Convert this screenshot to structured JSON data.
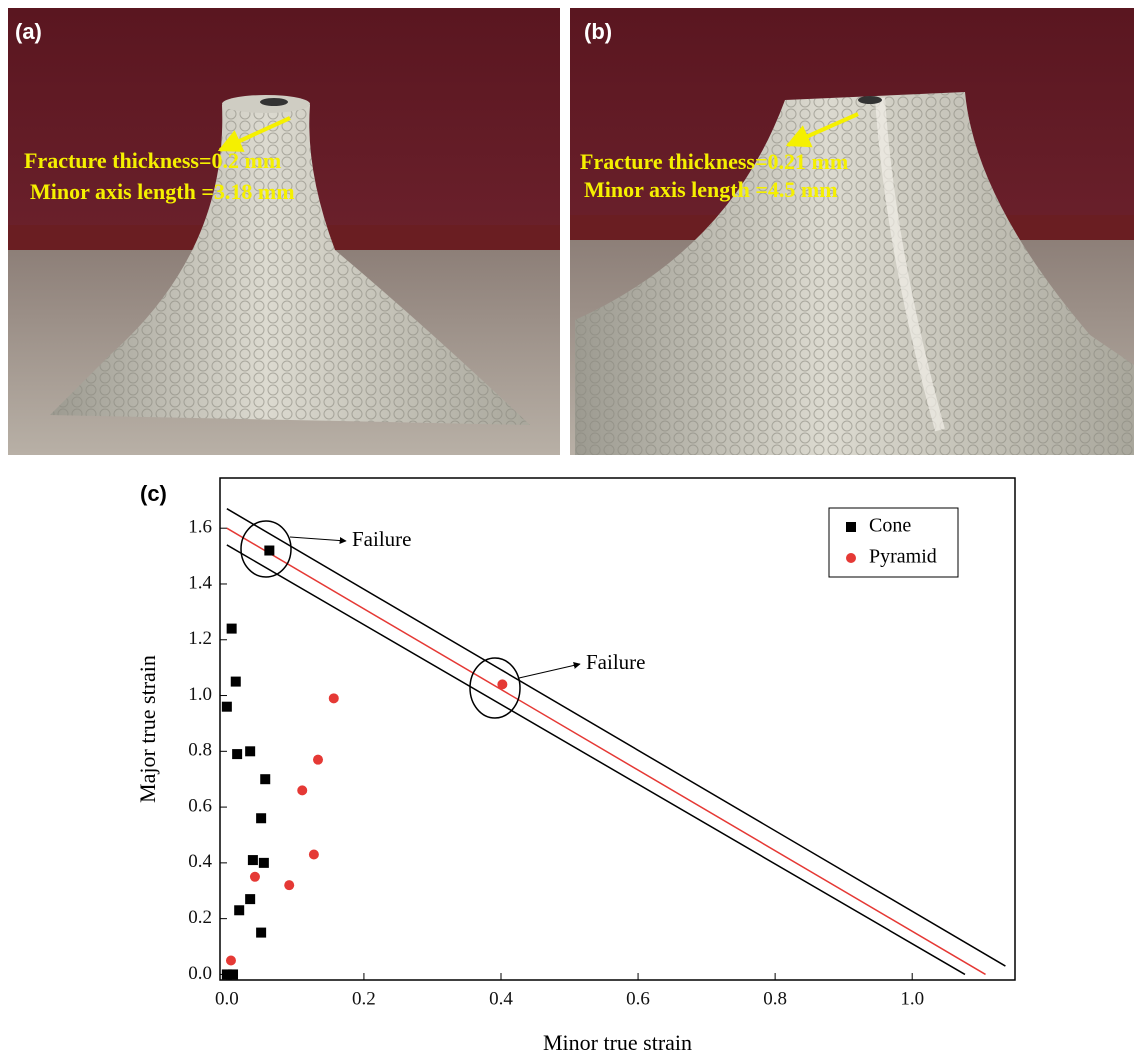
{
  "photos": [
    {
      "label": "(a)",
      "annotations": [
        "Fracture thickness=0.2 mm",
        "Minor axis length =3.18 mm"
      ]
    },
    {
      "label": "(b)",
      "annotations": [
        "Fracture thickness=0.21 mm",
        "Minor axis length =4.5 mm"
      ]
    }
  ],
  "chart_data": {
    "type": "scatter",
    "panel_label": "(c)",
    "x_label": "Minor true strain",
    "y_label": "Major true strain",
    "xlim": [
      -0.01,
      1.15
    ],
    "ylim": [
      -0.02,
      1.78
    ],
    "xticks": [
      {
        "value": 0,
        "label": "0.0"
      },
      0.2,
      0.4,
      0.6,
      0.8,
      {
        "value": 1,
        "label": "1.0"
      }
    ],
    "yticks": [
      {
        "value": 0,
        "label": "0.0"
      },
      0.2,
      0.4,
      0.6,
      0.8,
      {
        "value": 1,
        "label": "1.0"
      },
      1.2,
      1.4,
      1.6
    ],
    "legend": "upper right",
    "series": [
      {
        "name": "Cone",
        "color": "#000000",
        "marker": "square",
        "x": [
          0.062,
          0.007,
          0.013,
          0.0,
          0.015,
          0.034,
          0.056,
          0.05,
          0.038,
          0.054,
          0.034,
          0.018,
          0.05,
          0.0,
          0.009
        ],
        "y": [
          1.52,
          1.24,
          1.05,
          0.96,
          0.79,
          0.8,
          0.7,
          0.56,
          0.41,
          0.4,
          0.27,
          0.23,
          0.15,
          0.0,
          0.0
        ]
      },
      {
        "name": "Pyramid",
        "color": "#e53935",
        "marker": "circle",
        "x": [
          0.402,
          0.156,
          0.133,
          0.11,
          0.127,
          0.041,
          0.091,
          0.006
        ],
        "y": [
          1.04,
          0.99,
          0.77,
          0.66,
          0.43,
          0.35,
          0.32,
          0.05
        ]
      }
    ],
    "lines": [
      {
        "color": "#000000",
        "x": [
          0,
          1.136
        ],
        "y": [
          1.67,
          0.03
        ]
      },
      {
        "color": "#e53935",
        "x": [
          0,
          1.107
        ],
        "y": [
          1.6,
          0
        ]
      },
      {
        "color": "#000000",
        "x": [
          0,
          1.077
        ],
        "y": [
          1.54,
          0
        ]
      }
    ],
    "annotations": [
      "Failure",
      "Failure"
    ]
  }
}
